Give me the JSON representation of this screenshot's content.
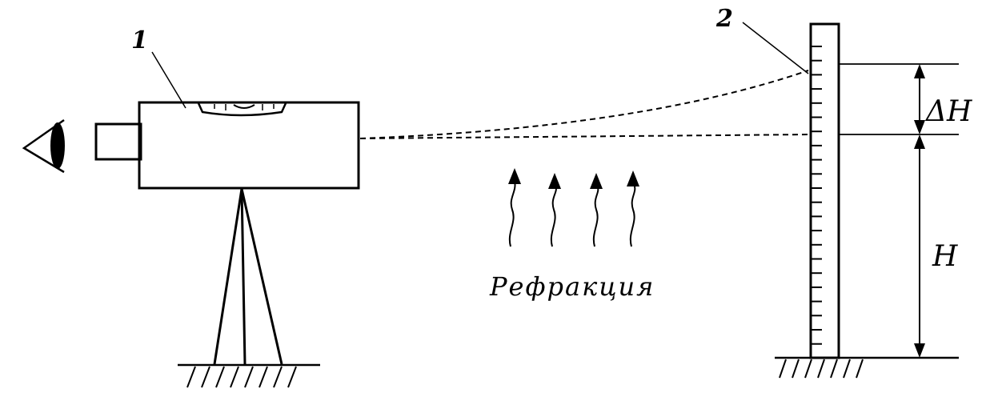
{
  "labels": {
    "instrument_number": "1",
    "rod_number": "2",
    "delta_h": "ΔH",
    "h": "H",
    "caption": "Рефракция"
  },
  "colors": {
    "ink": "#000000",
    "background": "#ffffff"
  }
}
